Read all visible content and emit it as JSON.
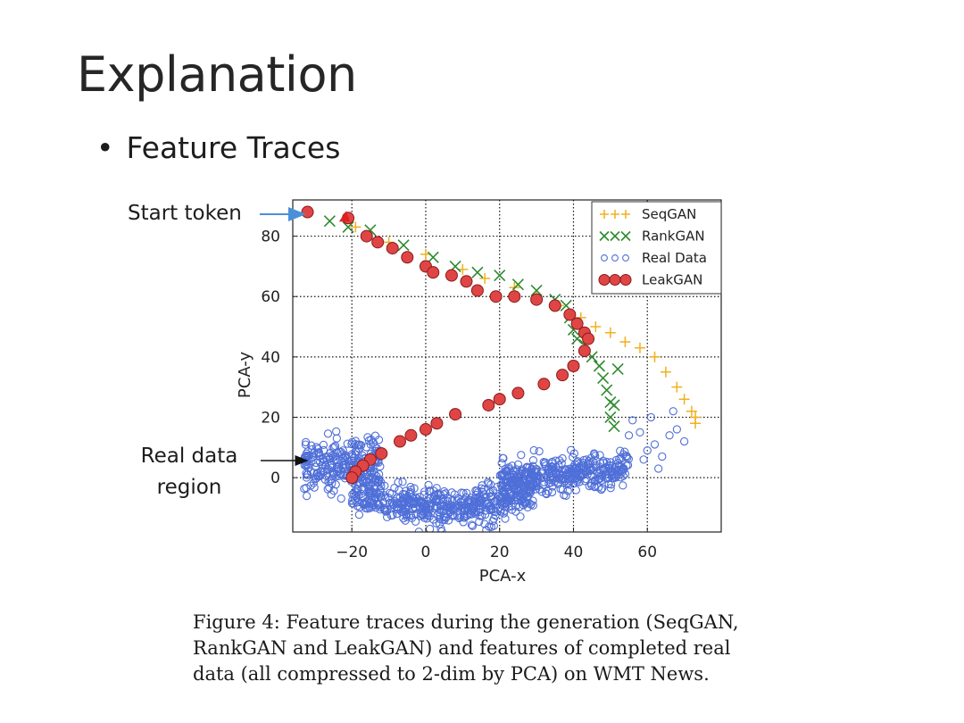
{
  "slide": {
    "title": "Explanation",
    "bullet": "Feature Traces",
    "annotations": {
      "start_token": "Start token",
      "real_data_line1": "Real data",
      "real_data_line2": "region"
    },
    "caption_lines": [
      "Figure 4: Feature traces during the generation (SeqGAN,",
      "RankGAN and LeakGAN) and features of completed real",
      "data (all compressed to 2-dim by PCA) on WMT News."
    ]
  },
  "chart_data": {
    "type": "scatter",
    "xlabel": "PCA-x",
    "ylabel": "PCA-y",
    "xlim": [
      -36,
      80
    ],
    "ylim": [
      -18,
      92
    ],
    "xticks": [
      -20,
      0,
      20,
      40,
      60
    ],
    "yticks": [
      0,
      20,
      40,
      60,
      80
    ],
    "xtick_labels": [
      "−20",
      "0",
      "20",
      "40",
      "60"
    ],
    "ytick_labels": [
      "0",
      "20",
      "40",
      "60",
      "80"
    ],
    "grid": true,
    "legend_position": "top-right",
    "series": [
      {
        "name": "SeqGAN",
        "marker": "plus",
        "color": "#f0b020",
        "points": [
          [
            -19,
            83
          ],
          [
            -10,
            78
          ],
          [
            0,
            74
          ],
          [
            10,
            69
          ],
          [
            16,
            66
          ],
          [
            24,
            63
          ],
          [
            30,
            60
          ],
          [
            36,
            57
          ],
          [
            42,
            53
          ],
          [
            46,
            50
          ],
          [
            50,
            48
          ],
          [
            54,
            45
          ],
          [
            58,
            43
          ],
          [
            62,
            40
          ],
          [
            65,
            35
          ],
          [
            68,
            30
          ],
          [
            70,
            26
          ],
          [
            72,
            22
          ],
          [
            73,
            20
          ],
          [
            73,
            18
          ]
        ]
      },
      {
        "name": "RankGAN",
        "marker": "x",
        "color": "#2e8b2e",
        "points": [
          [
            -26,
            85
          ],
          [
            -21,
            83
          ],
          [
            -15,
            82
          ],
          [
            -6,
            77
          ],
          [
            2,
            73
          ],
          [
            8,
            70
          ],
          [
            14,
            68
          ],
          [
            20,
            67
          ],
          [
            25,
            64
          ],
          [
            30,
            62
          ],
          [
            35,
            59
          ],
          [
            38,
            57
          ],
          [
            39,
            53
          ],
          [
            40,
            49
          ],
          [
            41,
            46
          ],
          [
            43,
            44
          ],
          [
            45,
            40
          ],
          [
            47,
            37
          ],
          [
            48,
            33
          ],
          [
            49,
            29
          ],
          [
            50,
            25
          ],
          [
            50,
            20
          ],
          [
            51,
            17
          ],
          [
            52,
            36
          ],
          [
            51,
            24
          ]
        ]
      },
      {
        "name": "Real Data",
        "marker": "circle-open",
        "color": "#4f6fd8",
        "region": true,
        "outliers": [
          [
            55,
            14
          ],
          [
            58,
            15
          ],
          [
            60,
            9
          ],
          [
            62,
            11
          ],
          [
            64,
            7
          ],
          [
            66,
            14
          ],
          [
            68,
            16
          ],
          [
            70,
            12
          ],
          [
            61,
            20
          ],
          [
            67,
            22
          ],
          [
            56,
            19
          ],
          [
            59,
            6
          ],
          [
            63,
            3
          ]
        ]
      },
      {
        "name": "LeakGAN",
        "marker": "circle-filled",
        "color": "#e04545",
        "points": [
          [
            -32,
            88
          ],
          [
            -21,
            86
          ],
          [
            -16,
            80
          ],
          [
            -13,
            78
          ],
          [
            -9,
            76
          ],
          [
            -5,
            73
          ],
          [
            0,
            70
          ],
          [
            2,
            68
          ],
          [
            7,
            67
          ],
          [
            11,
            65
          ],
          [
            14,
            62
          ],
          [
            19,
            60
          ],
          [
            24,
            60
          ],
          [
            30,
            59
          ],
          [
            35,
            57
          ],
          [
            39,
            54
          ],
          [
            41,
            51
          ],
          [
            43,
            48
          ],
          [
            44,
            46
          ],
          [
            43,
            42
          ],
          [
            40,
            37
          ],
          [
            37,
            34
          ],
          [
            32,
            31
          ],
          [
            25,
            28
          ],
          [
            20,
            26
          ],
          [
            17,
            24
          ],
          [
            8,
            21
          ],
          [
            3,
            18
          ],
          [
            0,
            16
          ],
          [
            -4,
            14
          ],
          [
            -7,
            12
          ],
          [
            -12,
            8
          ],
          [
            -15,
            6
          ],
          [
            -17,
            4
          ],
          [
            -19,
            2
          ],
          [
            -20,
            0
          ]
        ]
      }
    ]
  }
}
